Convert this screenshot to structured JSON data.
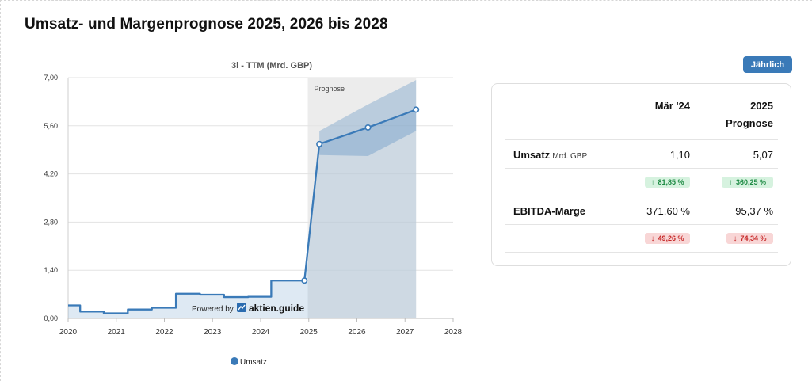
{
  "page": {
    "title": "Umsatz- und Margenprognose 2025, 2026 bis 2028"
  },
  "period_toggle": {
    "label": "Jährlich"
  },
  "chart_data": {
    "type": "line",
    "title": "3i - TTM (Mrd. GBP)",
    "xlim": [
      2020,
      2028
    ],
    "ylim": [
      0,
      7
    ],
    "x_ticks": [
      2020,
      2021,
      2022,
      2023,
      2024,
      2025,
      2026,
      2027,
      2028
    ],
    "y_ticks": [
      0,
      1.4,
      2.8,
      4.2,
      5.6,
      7
    ],
    "y_tick_labels": [
      "0,00",
      "1,40",
      "2,80",
      "4,20",
      "5,60",
      "7,00"
    ],
    "grid": "horizontal",
    "forecast_region": {
      "label": "Prognose",
      "from": 2024.98,
      "to": 2027.23
    },
    "series": [
      {
        "name": "Umsatz",
        "color": "#3a7ab8",
        "points": [
          [
            2020.0,
            0.38
          ],
          [
            2020.25,
            0.38
          ],
          [
            2020.25,
            0.2
          ],
          [
            2020.74,
            0.2
          ],
          [
            2020.74,
            0.15
          ],
          [
            2021.24,
            0.15
          ],
          [
            2021.24,
            0.26
          ],
          [
            2021.74,
            0.26
          ],
          [
            2021.74,
            0.31
          ],
          [
            2022.24,
            0.31
          ],
          [
            2022.24,
            0.72
          ],
          [
            2022.74,
            0.72
          ],
          [
            2022.74,
            0.69
          ],
          [
            2023.24,
            0.69
          ],
          [
            2023.24,
            0.62
          ],
          [
            2023.74,
            0.62
          ],
          [
            2023.74,
            0.63
          ],
          [
            2024.22,
            0.63
          ],
          [
            2024.22,
            1.1
          ],
          [
            2024.91,
            1.1
          ]
        ],
        "forecast_points": [
          [
            2025.22,
            5.07
          ],
          [
            2026.23,
            5.55
          ],
          [
            2027.23,
            6.07
          ]
        ],
        "forecast_band": {
          "x": [
            2025.22,
            2026.23,
            2027.23
          ],
          "low": [
            4.75,
            4.72,
            5.45
          ],
          "high": [
            5.45,
            6.22,
            6.93
          ]
        }
      }
    ],
    "legend": {
      "position": "bottom-center",
      "entries": [
        "Umsatz"
      ]
    },
    "watermark": {
      "prefix": "Powered by",
      "brand": "aktien.guide"
    }
  },
  "table": {
    "columns": [
      {
        "line1": "Mär '24",
        "line2": ""
      },
      {
        "line1": "2025",
        "line2": "Prognose"
      }
    ],
    "rows": [
      {
        "label": "Umsatz",
        "unit": "Mrd. GBP",
        "values": [
          "1,10",
          "5,07"
        ],
        "changes": [
          {
            "text": "81,85 %",
            "direction": "up"
          },
          {
            "text": "360,25 %",
            "direction": "up"
          }
        ]
      },
      {
        "label": "EBITDA-Marge",
        "unit": "",
        "values": [
          "371,60 %",
          "95,37 %"
        ],
        "changes": [
          {
            "text": "49,26 %",
            "direction": "down"
          },
          {
            "text": "74,34 %",
            "direction": "down"
          }
        ]
      }
    ],
    "colors": {
      "up_bg": "#d6f2df",
      "up_text": "#1d8a43",
      "down_bg": "#f8d6d6",
      "down_text": "#c62828"
    }
  }
}
